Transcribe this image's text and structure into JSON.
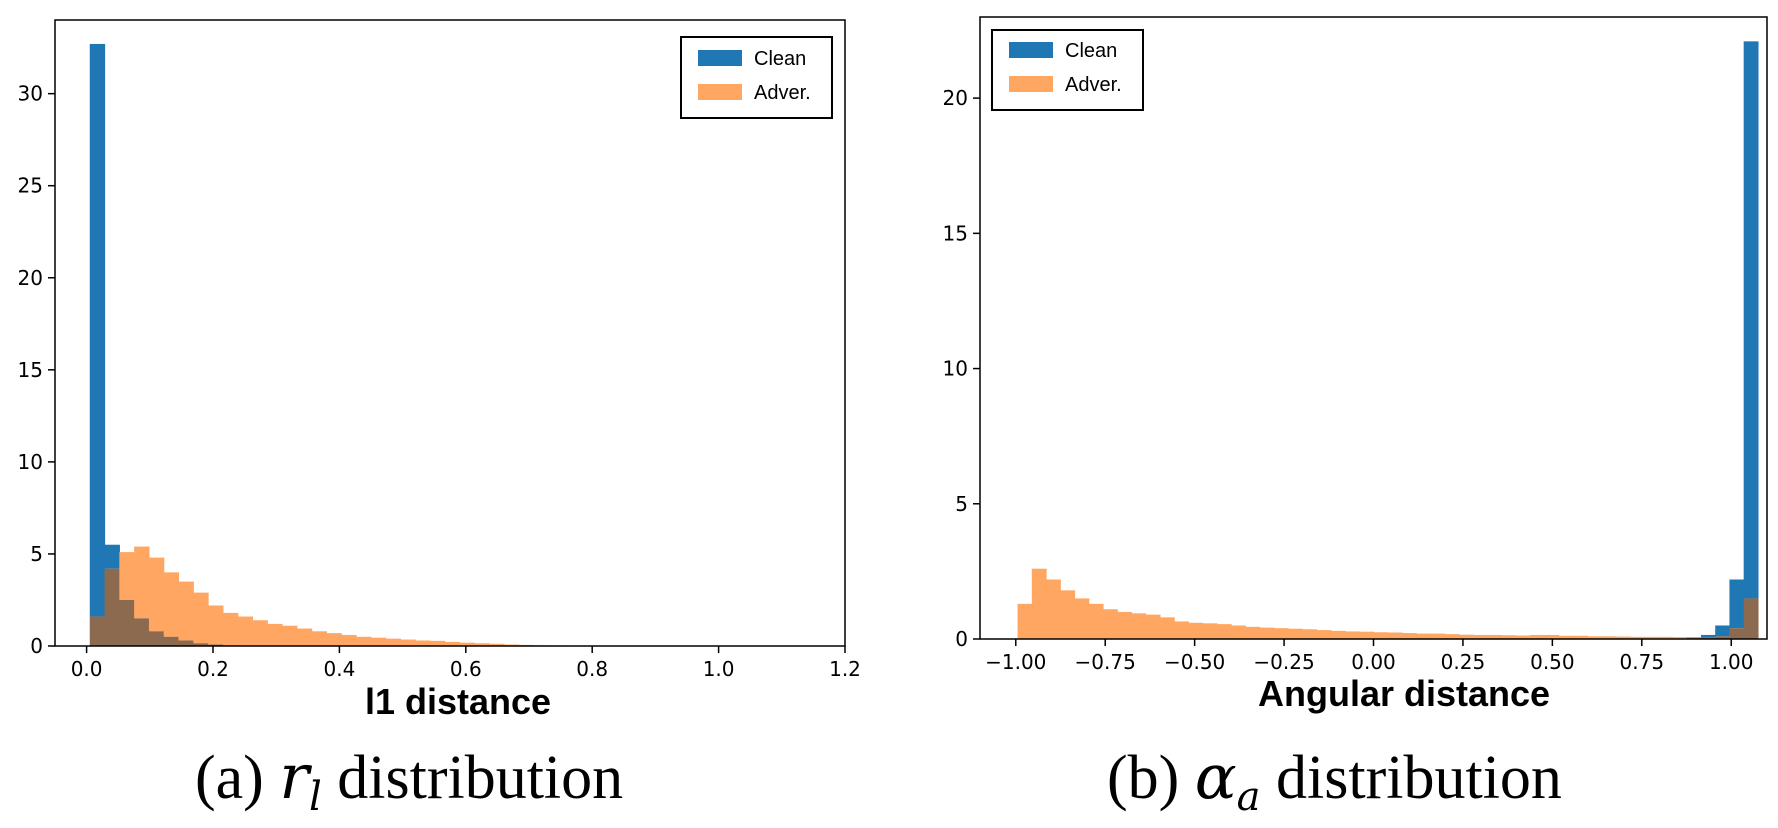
{
  "colors": {
    "clean": "#1f77b4",
    "adver": "#ffa762",
    "overlap": "#8c6a4f"
  },
  "chart_data": [
    {
      "type": "bar",
      "title": "",
      "xlabel": "l1 distance",
      "ylabel": "",
      "xlim": [
        -0.05,
        1.2
      ],
      "ylim": [
        0,
        34
      ],
      "xticks": [
        0.0,
        0.2,
        0.4,
        0.6,
        0.8,
        1.0,
        1.2
      ],
      "xtick_labels": [
        "0.0",
        "0.2",
        "0.4",
        "0.6",
        "0.8",
        "1.0",
        "1.2"
      ],
      "yticks": [
        0,
        5,
        10,
        15,
        20,
        25,
        30
      ],
      "ytick_labels": [
        "0",
        "5",
        "10",
        "15",
        "20",
        "25",
        "30"
      ],
      "legend": [
        "Clean",
        "Adver."
      ],
      "legend_position": "top-right",
      "bin_start": 0.005,
      "bin_width": 0.0234,
      "series": [
        {
          "name": "Clean",
          "values": [
            32.7,
            5.5,
            2.5,
            1.5,
            0.8,
            0.5,
            0.3,
            0.15,
            0.08,
            0.04
          ]
        },
        {
          "name": "Adver.",
          "values": [
            1.6,
            4.2,
            5.1,
            5.4,
            4.8,
            4.0,
            3.5,
            2.9,
            2.2,
            1.8,
            1.6,
            1.4,
            1.2,
            1.1,
            0.95,
            0.8,
            0.7,
            0.6,
            0.5,
            0.45,
            0.4,
            0.35,
            0.3,
            0.28,
            0.22,
            0.18,
            0.15,
            0.12,
            0.08,
            0.06,
            0.04,
            0.03,
            0.02,
            0.01,
            0.01
          ]
        }
      ],
      "caption": {
        "prefix": "(a) ",
        "symbol": "r",
        "subscript": "l",
        "suffix": " distribution"
      }
    },
    {
      "type": "bar",
      "title": "",
      "xlabel": "Angular distance",
      "ylabel": "",
      "xlim": [
        -1.1,
        1.1
      ],
      "ylim": [
        0,
        23
      ],
      "xticks": [
        -1.0,
        -0.75,
        -0.5,
        -0.25,
        0.0,
        0.25,
        0.5,
        0.75,
        1.0
      ],
      "xtick_labels": [
        "−1.00",
        "−0.75",
        "−0.50",
        "−0.25",
        "0.00",
        "0.25",
        "0.50",
        "0.75",
        "1.00"
      ],
      "yticks": [
        0,
        5,
        10,
        15,
        20
      ],
      "ytick_labels": [
        "0",
        "5",
        "10",
        "15",
        "20"
      ],
      "legend": [
        "Clean",
        "Adver."
      ],
      "legend_position": "top-left",
      "bin_start": -0.995,
      "bin_width": 0.0398,
      "series": [
        {
          "name": "Clean",
          "values": [
            0,
            0,
            0,
            0,
            0,
            0,
            0,
            0,
            0,
            0,
            0,
            0,
            0,
            0,
            0,
            0,
            0,
            0,
            0,
            0,
            0,
            0,
            0,
            0,
            0,
            0,
            0,
            0,
            0,
            0,
            0,
            0,
            0,
            0,
            0,
            0,
            0,
            0,
            0,
            0,
            0,
            0,
            0,
            0,
            0,
            0,
            0,
            0.05,
            0.15,
            0.5,
            2.2,
            22.1
          ]
        },
        {
          "name": "Adver.",
          "values": [
            1.3,
            2.6,
            2.2,
            1.8,
            1.5,
            1.3,
            1.1,
            1.0,
            0.95,
            0.9,
            0.8,
            0.65,
            0.6,
            0.58,
            0.55,
            0.5,
            0.45,
            0.42,
            0.4,
            0.38,
            0.36,
            0.33,
            0.3,
            0.28,
            0.27,
            0.25,
            0.24,
            0.22,
            0.2,
            0.2,
            0.18,
            0.16,
            0.15,
            0.15,
            0.14,
            0.13,
            0.15,
            0.15,
            0.12,
            0.12,
            0.1,
            0.1,
            0.09,
            0.08,
            0.08,
            0.08,
            0.07,
            0.07,
            0.06,
            0.1,
            0.4,
            1.5
          ]
        }
      ],
      "caption": {
        "prefix": "(b) ",
        "symbol": "α",
        "subscript": "a",
        "suffix": " distribution"
      }
    }
  ]
}
